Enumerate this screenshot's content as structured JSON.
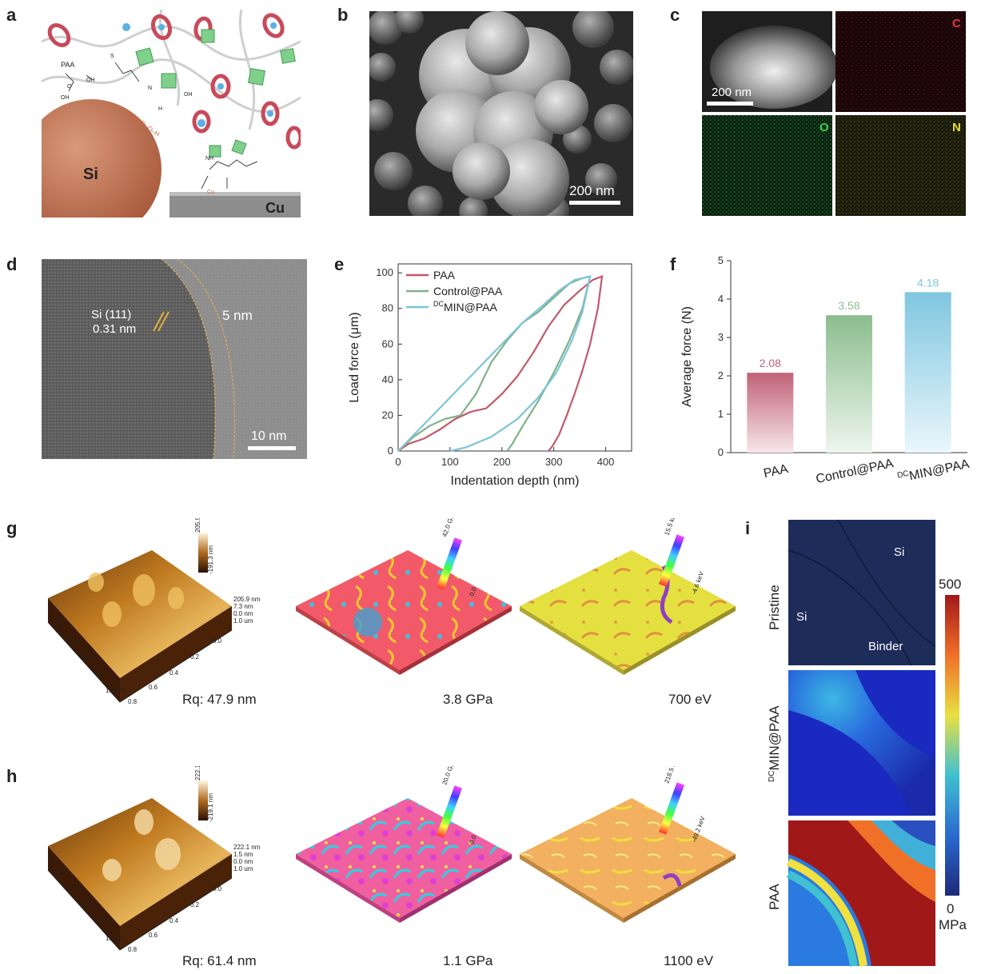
{
  "figure": {
    "panel_labels": [
      "a",
      "b",
      "c",
      "d",
      "e",
      "f",
      "g",
      "h",
      "i"
    ],
    "a": {
      "labels": {
        "paa": "PAA",
        "si": "Si",
        "cu": "Cu",
        "oh1": "OH",
        "oh2": "OH",
        "oh3": "OH",
        "o": "O",
        "sioh": "Si–O–Si–O–H",
        "n": "N",
        "nh": "NH",
        "h": "H",
        "cu_atom": "Cu",
        "s": "S"
      }
    },
    "b": {
      "scalebar": "200 nm"
    },
    "c": {
      "scalebar": "200 nm",
      "maps": [
        "C",
        "O",
        "N"
      ]
    },
    "d": {
      "lattice": "Si (111)",
      "spacing": "0.31 nm",
      "layer": "5 nm",
      "scalebar": "10 nm"
    },
    "f_values": [
      "2.08",
      "3.58",
      "4.18"
    ],
    "g": {
      "captions": [
        "Rq: 47.9 nm",
        "3.8 GPa",
        "700 eV"
      ],
      "afm_scale": {
        "top": "205.9 nm",
        "bottom": "-191.3 nm"
      },
      "afm_axis_right": [
        "205.9 nm",
        "7.3 nm",
        "0.0 nm",
        "1.0 um"
      ],
      "afm_axis_left": [
        "0.2",
        "0.4",
        "0.6",
        "0.8",
        "1.0 um"
      ],
      "afm_axis_bottom": [
        "0.0",
        "0.2",
        "0.4",
        "0.6",
        "0.8"
      ],
      "mod_scale": {
        "top": "42.0 GPa",
        "bottom": "0.0"
      },
      "adh_scale": {
        "top": "15.5 keV",
        "bottom": "-4.6 keV"
      }
    },
    "h": {
      "captions": [
        "Rq: 61.4 nm",
        "1.1 GPa",
        "1100 eV"
      ],
      "afm_scale": {
        "top": "222.1 nm",
        "bottom": "-219.1 nm"
      },
      "afm_axis_right": [
        "222.1 nm",
        "1.5 nm",
        "0.0 nm",
        "1.0 um"
      ],
      "afm_axis_left": [
        "0.2",
        "0.4",
        "0.6",
        "0.8",
        "1.0 um"
      ],
      "afm_axis_bottom": [
        "0.0",
        "0.2",
        "0.4",
        "0.6",
        "0.8"
      ],
      "mod_scale": {
        "top": "20.0 GPa",
        "bottom": "0.0"
      },
      "adh_scale": {
        "top": "218.5 keV",
        "bottom": "-49.2 keV"
      }
    },
    "i": {
      "rows": [
        "Pristine",
        "DCMIN@PAA",
        "PAA"
      ],
      "row_sup": "DC",
      "row_main": "MIN@PAA",
      "pristine_labels": [
        "Si",
        "Si",
        "Binder"
      ],
      "colorbar": {
        "max": "500",
        "min": "0",
        "unit": "MPa"
      }
    }
  },
  "chart_data": [
    {
      "type": "line",
      "panel": "e",
      "xlabel": "Indentation depth  (nm)",
      "ylabel": "Load force (μm)",
      "xlim": [
        0,
        450
      ],
      "ylim": [
        0,
        105
      ],
      "xticks": [
        0,
        100,
        200,
        300,
        400
      ],
      "yticks": [
        0,
        20,
        40,
        60,
        80,
        100
      ],
      "series": [
        {
          "name": "PAA",
          "color": "#c05a6a",
          "load": [
            [
              0,
              0
            ],
            [
              20,
              4
            ],
            [
              50,
              7
            ],
            [
              80,
              12
            ],
            [
              110,
              18
            ],
            [
              140,
              22
            ],
            [
              170,
              24
            ],
            [
              200,
              32
            ],
            [
              230,
              42
            ],
            [
              260,
              55
            ],
            [
              290,
              70
            ],
            [
              320,
              82
            ],
            [
              350,
              90
            ],
            [
              375,
              96
            ],
            [
              393,
              98
            ]
          ],
          "unload": [
            [
              393,
              98
            ],
            [
              385,
              80
            ],
            [
              370,
              60
            ],
            [
              355,
              45
            ],
            [
              340,
              32
            ],
            [
              325,
              20
            ],
            [
              310,
              9
            ],
            [
              298,
              3
            ],
            [
              290,
              0
            ]
          ]
        },
        {
          "name": "Control@PAA",
          "color": "#7fb28a",
          "load": [
            [
              0,
              0
            ],
            [
              30,
              8
            ],
            [
              60,
              14
            ],
            [
              90,
              18
            ],
            [
              120,
              20
            ],
            [
              150,
              32
            ],
            [
              180,
              50
            ],
            [
              210,
              62
            ],
            [
              240,
              72
            ],
            [
              270,
              78
            ],
            [
              300,
              86
            ],
            [
              330,
              94
            ],
            [
              355,
              97
            ],
            [
              370,
              98
            ]
          ],
          "unload": [
            [
              370,
              98
            ],
            [
              355,
              80
            ],
            [
              330,
              62
            ],
            [
              300,
              44
            ],
            [
              270,
              28
            ],
            [
              240,
              14
            ],
            [
              220,
              4
            ],
            [
              210,
              0
            ]
          ]
        },
        {
          "name": "DCMIN@PAA",
          "legend_sup": "DC",
          "legend_main": "MIN@PAA",
          "color": "#7ec4d8",
          "load": [
            [
              0,
              0
            ],
            [
              40,
              12
            ],
            [
              80,
              24
            ],
            [
              120,
              36
            ],
            [
              160,
              48
            ],
            [
              200,
              60
            ],
            [
              240,
              72
            ],
            [
              280,
              82
            ],
            [
              310,
              90
            ],
            [
              340,
              96
            ],
            [
              370,
              98
            ]
          ],
          "unload": [
            [
              370,
              98
            ],
            [
              355,
              78
            ],
            [
              335,
              62
            ],
            [
              305,
              44
            ],
            [
              270,
              30
            ],
            [
              230,
              18
            ],
            [
              180,
              8
            ],
            [
              130,
              2
            ],
            [
              100,
              0
            ]
          ]
        }
      ]
    },
    {
      "type": "bar",
      "panel": "f",
      "categories": [
        "PAA",
        "Control@PAA",
        "DCMIN@PAA"
      ],
      "values": [
        2.08,
        3.58,
        4.18
      ],
      "colors": [
        "#c06276",
        "#8bbd8e",
        "#7fc6e0"
      ],
      "ylabel": "Average force (N)",
      "ylim": [
        0,
        5
      ],
      "yticks": [
        0,
        1,
        2,
        3,
        4,
        5
      ]
    }
  ]
}
